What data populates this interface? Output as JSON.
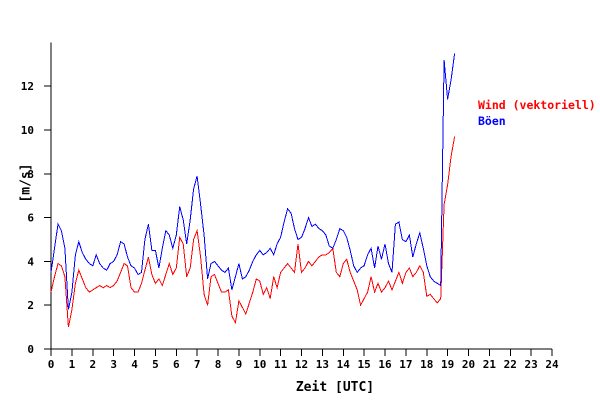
{
  "chart_data": {
    "type": "line",
    "title": "",
    "xlabel": "Zeit [UTC]",
    "ylabel": "[m/s]",
    "xlim": [
      0,
      24
    ],
    "ylim": [
      0,
      14
    ],
    "x_ticks": [
      0,
      1,
      2,
      3,
      4,
      5,
      6,
      7,
      8,
      9,
      10,
      11,
      12,
      13,
      14,
      15,
      16,
      17,
      18,
      19,
      20,
      21,
      22,
      23,
      24
    ],
    "y_ticks": [
      0,
      2,
      4,
      6,
      8,
      10,
      12
    ],
    "grid": false,
    "axis_color": "#000000",
    "background": "#ffffff",
    "x_start_hour": 0,
    "sample_interval_minutes": 10,
    "legend": {
      "position": "upper-right",
      "entries": [
        {
          "label": "Wind (vektoriell)",
          "color": "#ff0000"
        },
        {
          "label": "Böen",
          "color": "#0000ff"
        }
      ]
    },
    "series": [
      {
        "name": "Wind (vektoriell)",
        "color": "#ff0000",
        "values": [
          2.6,
          3.3,
          3.9,
          3.8,
          3.3,
          1.0,
          1.8,
          3.0,
          3.6,
          3.2,
          2.8,
          2.6,
          2.7,
          2.8,
          2.9,
          2.8,
          2.9,
          2.8,
          2.9,
          3.1,
          3.5,
          3.9,
          3.8,
          2.8,
          2.6,
          2.6,
          3.0,
          3.6,
          4.2,
          3.4,
          3.0,
          3.2,
          2.9,
          3.4,
          3.9,
          3.4,
          3.7,
          5.1,
          4.8,
          3.3,
          3.7,
          5.0,
          5.4,
          4.2,
          2.5,
          2.0,
          3.3,
          3.4,
          3.0,
          2.6,
          2.6,
          2.7,
          1.5,
          1.2,
          2.2,
          1.9,
          1.6,
          2.1,
          2.6,
          3.2,
          3.1,
          2.5,
          2.8,
          2.3,
          3.3,
          2.8,
          3.5,
          3.7,
          3.9,
          3.7,
          3.5,
          4.8,
          3.5,
          3.7,
          4.0,
          3.8,
          4.0,
          4.2,
          4.3,
          4.3,
          4.4,
          4.6,
          3.5,
          3.3,
          3.9,
          4.1,
          3.5,
          3.1,
          2.7,
          2.0,
          2.3,
          2.6,
          3.3,
          2.6,
          3.0,
          2.6,
          2.8,
          3.1,
          2.7,
          3.1,
          3.5,
          3.0,
          3.5,
          3.7,
          3.3,
          3.5,
          3.8,
          3.5,
          2.4,
          2.5,
          2.3,
          2.1,
          2.3,
          6.6,
          7.5,
          8.8,
          9.7
        ]
      },
      {
        "name": "Böen",
        "color": "#0000ff",
        "values": [
          3.5,
          4.6,
          5.7,
          5.4,
          4.6,
          1.8,
          2.6,
          4.3,
          4.9,
          4.4,
          4.1,
          3.9,
          3.8,
          4.3,
          3.9,
          3.7,
          3.6,
          3.9,
          4.0,
          4.3,
          4.9,
          4.8,
          4.2,
          3.8,
          3.7,
          3.4,
          3.5,
          5.0,
          5.7,
          4.5,
          4.5,
          3.7,
          4.6,
          5.4,
          5.2,
          4.6,
          5.2,
          6.5,
          5.9,
          4.8,
          5.9,
          7.3,
          7.9,
          6.6,
          5.2,
          3.2,
          3.9,
          4.0,
          3.8,
          3.6,
          3.5,
          3.7,
          2.7,
          3.3,
          3.9,
          3.2,
          3.3,
          3.6,
          4.0,
          4.3,
          4.5,
          4.3,
          4.4,
          4.6,
          4.3,
          4.8,
          5.1,
          5.8,
          6.4,
          6.2,
          5.5,
          5.0,
          5.1,
          5.5,
          6.0,
          5.6,
          5.7,
          5.5,
          5.4,
          5.2,
          4.7,
          4.6,
          5.0,
          5.5,
          5.4,
          5.1,
          4.5,
          3.8,
          3.5,
          3.7,
          3.8,
          4.3,
          4.6,
          3.7,
          4.7,
          4.1,
          4.8,
          3.9,
          3.5,
          5.7,
          5.8,
          5.0,
          4.9,
          5.2,
          4.2,
          4.8,
          5.3,
          4.6,
          3.8,
          3.3,
          3.1,
          3.0,
          2.9,
          13.2,
          11.4,
          12.3,
          13.5
        ]
      }
    ]
  }
}
